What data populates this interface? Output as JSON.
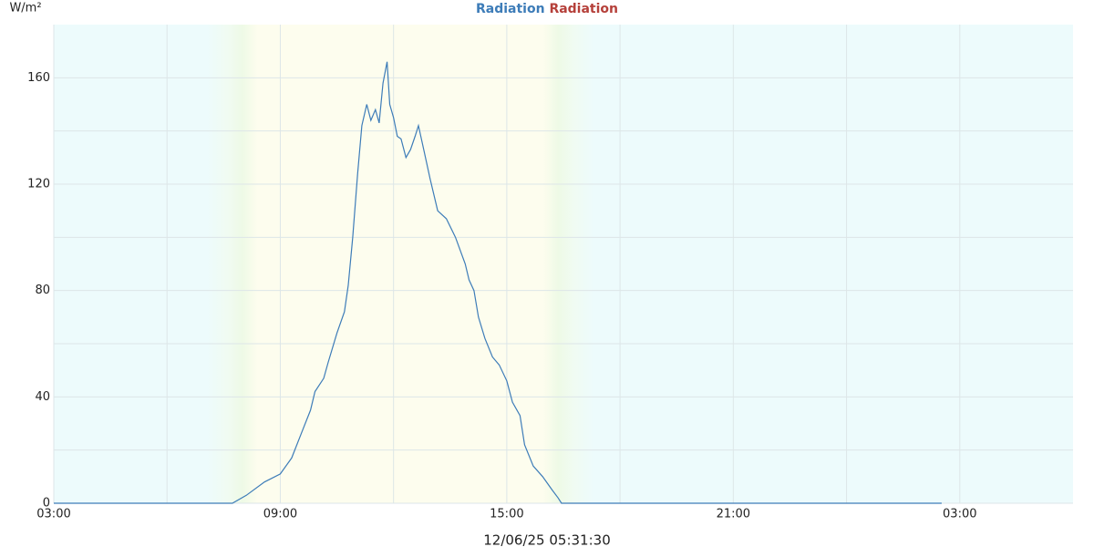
{
  "chart_data": {
    "type": "line",
    "title": [
      {
        "text": "Radiation",
        "color": "#3d7cb8"
      },
      {
        "text": "Radiation",
        "color": "#b5403a"
      }
    ],
    "ylabel": "W/m²",
    "xlabel": "12/06/25 05:31:30",
    "x": [
      3,
      7.73,
      8.1,
      8.58,
      9.0,
      9.3,
      9.55,
      9.8,
      9.92,
      10.15,
      10.27,
      10.5,
      10.7,
      10.8,
      10.92,
      11.05,
      11.16,
      11.29,
      11.4,
      11.52,
      11.62,
      11.72,
      11.83,
      11.9,
      12.0,
      12.1,
      12.2,
      12.33,
      12.45,
      12.57,
      12.66,
      12.8,
      12.97,
      13.17,
      13.4,
      13.64,
      13.9,
      14.0,
      14.13,
      14.25,
      14.42,
      14.62,
      14.8,
      15.0,
      15.15,
      15.35,
      15.47,
      15.7,
      15.95,
      16.2,
      16.36,
      16.45,
      26.52
    ],
    "series": [
      {
        "name": "Radiation",
        "color": "#3d7cb8",
        "values": [
          0,
          0,
          3,
          8,
          11,
          17,
          26,
          35,
          42,
          47,
          53,
          64,
          72,
          82,
          100,
          124,
          142,
          150,
          144,
          148,
          143,
          158,
          166,
          150,
          145,
          138,
          137,
          130,
          133,
          138,
          142,
          133,
          122,
          110,
          107,
          100,
          90,
          84,
          80,
          70,
          62,
          55,
          52,
          46,
          38,
          33,
          22,
          14,
          10,
          5,
          2,
          0,
          0
        ]
      }
    ],
    "xlim": [
      3,
      30
    ],
    "xticks": [
      {
        "value": 3,
        "label": "03:00"
      },
      {
        "value": 9,
        "label": "09:00"
      },
      {
        "value": 15,
        "label": "15:00"
      },
      {
        "value": 21,
        "label": "21:00"
      },
      {
        "value": 27,
        "label": "03:00"
      }
    ],
    "minor_xticks": [
      6,
      12,
      18,
      24
    ],
    "ylim": [
      0,
      180
    ],
    "yticks": [
      0,
      40,
      80,
      120,
      160
    ],
    "minor_yticks": [
      20,
      60,
      100,
      140
    ],
    "grid": true
  }
}
